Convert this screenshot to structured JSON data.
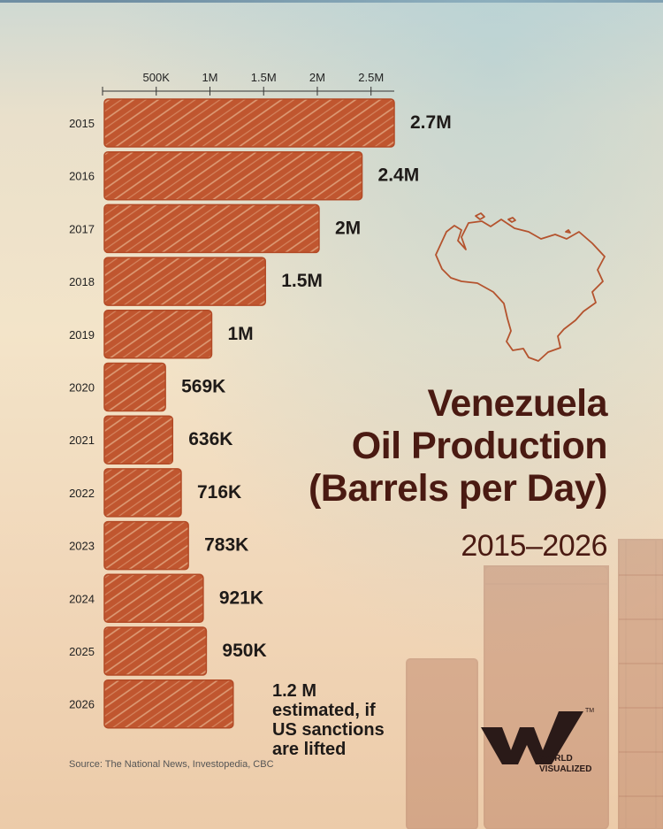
{
  "chart_data": {
    "type": "bar",
    "orientation": "horizontal",
    "categories": [
      "2015",
      "2016",
      "2017",
      "2018",
      "2019",
      "2020",
      "2021",
      "2022",
      "2023",
      "2024",
      "2025",
      "2026"
    ],
    "values": [
      2700000,
      2400000,
      2000000,
      1500000,
      1000000,
      569000,
      636000,
      716000,
      783000,
      921000,
      950000,
      1200000
    ],
    "data_labels": [
      "2.7M",
      "2.4M",
      "2M",
      "1.5M",
      "1M",
      "569K",
      "636K",
      "716K",
      "783K",
      "921K",
      "950K",
      ""
    ],
    "x_ticks": [
      {
        "value": 500000,
        "label": "500K"
      },
      {
        "value": 1000000,
        "label": "1M"
      },
      {
        "value": 1500000,
        "label": "1.5M"
      },
      {
        "value": 2000000,
        "label": "2M"
      },
      {
        "value": 2500000,
        "label": "2.5M"
      }
    ],
    "xlim": [
      0,
      2700000
    ],
    "axis_position": "top",
    "bar_color": "#c0562f",
    "bar_style": "hand-drawn scribble fill",
    "title": "Venezuela Oil Production (Barrels per Day)",
    "subtitle": "2015–2026",
    "annotation_2026": [
      "1.2 M",
      "estimated, if",
      "US sanctions",
      "are lifted"
    ]
  },
  "title_lines": [
    "Venezuela",
    "Oil Production",
    "(Barrels per Day)"
  ],
  "subtitle": "2015–2026",
  "source": "Source: The National News, Investopedia, CBC",
  "brand": {
    "line1": "WORLD",
    "line2": "VISUALIZED",
    "tm": "TM"
  },
  "colors": {
    "bar": "#c0562f",
    "title": "#4a1a12",
    "map_outline": "#b4532e"
  }
}
